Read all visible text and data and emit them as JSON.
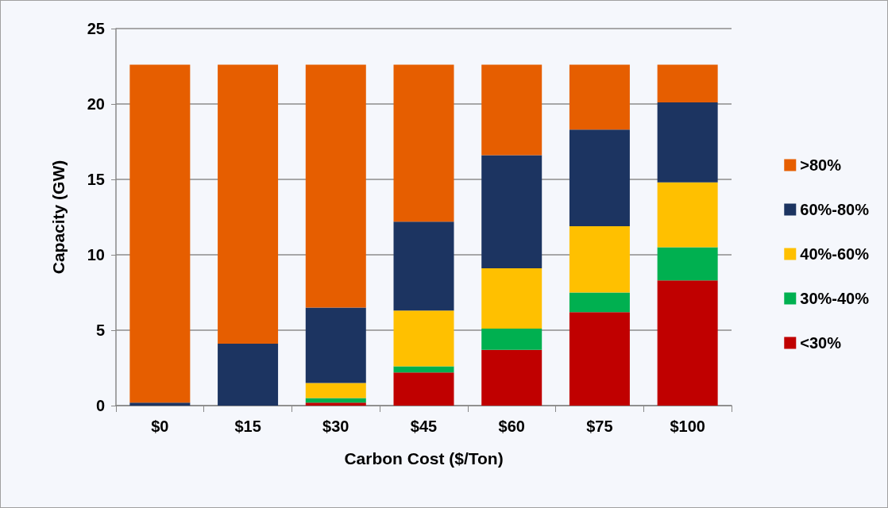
{
  "chart_data": {
    "type": "bar",
    "stacked": true,
    "xlabel": "Carbon Cost ($/Ton)",
    "ylabel": "Capacity (GW)",
    "categories": [
      "$0",
      "$15",
      "$30",
      "$45",
      "$60",
      "$75",
      "$100"
    ],
    "series": [
      {
        "name": "<30%",
        "color": "#c00000",
        "values": [
          0,
          0,
          0.2,
          2.2,
          3.7,
          6.2,
          8.3
        ]
      },
      {
        "name": "30%-40%",
        "color": "#00b050",
        "values": [
          0,
          0,
          0.3,
          0.4,
          1.4,
          1.3,
          2.2
        ]
      },
      {
        "name": "40%-60%",
        "color": "#ffc000",
        "values": [
          0,
          0,
          1.0,
          3.7,
          4.0,
          4.4,
          4.3
        ]
      },
      {
        "name": "60%-80%",
        "color": "#1c3461",
        "values": [
          0.2,
          4.1,
          5.0,
          5.9,
          7.5,
          6.4,
          5.3
        ]
      },
      {
        "name": ">80%",
        "color": "#e65e00",
        "values": [
          22.4,
          18.5,
          16.1,
          10.4,
          6.0,
          4.3,
          2.5
        ]
      }
    ],
    "ylim": [
      0,
      25
    ],
    "yticks": [
      0,
      5,
      10,
      15,
      20,
      25
    ],
    "grid": "y",
    "legend": "right"
  }
}
